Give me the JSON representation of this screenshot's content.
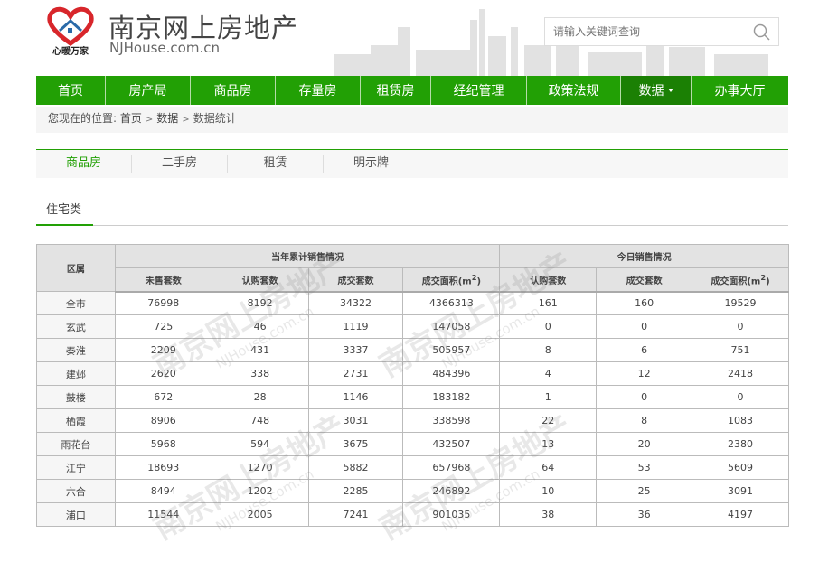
{
  "header": {
    "site_title": "南京网上房地产",
    "site_domain": "NJHouse.com.cn",
    "logo_text": "心暖万家",
    "search_placeholder": "请输入关键词查询",
    "search_icon": "search-icon"
  },
  "nav": [
    {
      "label": "首页"
    },
    {
      "label": "房产局"
    },
    {
      "label": "商品房"
    },
    {
      "label": "存量房"
    },
    {
      "label": "租赁房"
    },
    {
      "label": "经纪管理"
    },
    {
      "label": "政策法规"
    },
    {
      "label": "数据",
      "active": true
    },
    {
      "label": "办事大厅"
    }
  ],
  "breadcrumb": {
    "prefix": "您现在的位置:",
    "items": [
      "首页",
      "数据",
      "数据统计"
    ],
    "separator": ">"
  },
  "subtabs": [
    {
      "label": "商品房",
      "active": true
    },
    {
      "label": "二手房"
    },
    {
      "label": "租赁"
    },
    {
      "label": "明示牌"
    }
  ],
  "category": "住宅类",
  "table": {
    "region_header": "区属",
    "group1": "当年累计销售情况",
    "group2": "今日销售情况",
    "columns": [
      "未售套数",
      "认购套数",
      "成交套数",
      "成交面积(m",
      "认购套数",
      "成交套数",
      "成交面积(m"
    ],
    "sup": "2",
    "rows": [
      [
        "全市",
        "76998",
        "8192",
        "34322",
        "4366313",
        "161",
        "160",
        "19529"
      ],
      [
        "玄武",
        "725",
        "46",
        "1119",
        "147058",
        "0",
        "0",
        "0"
      ],
      [
        "秦淮",
        "2209",
        "431",
        "3337",
        "505957",
        "8",
        "6",
        "751"
      ],
      [
        "建邺",
        "2620",
        "338",
        "2731",
        "484396",
        "4",
        "12",
        "2418"
      ],
      [
        "鼓楼",
        "672",
        "28",
        "1146",
        "183182",
        "1",
        "0",
        "0"
      ],
      [
        "栖霞",
        "8906",
        "748",
        "3031",
        "338598",
        "22",
        "8",
        "1083"
      ],
      [
        "雨花台",
        "5968",
        "594",
        "3675",
        "432507",
        "13",
        "20",
        "2380"
      ],
      [
        "江宁",
        "18693",
        "1270",
        "5882",
        "657968",
        "64",
        "53",
        "5609"
      ],
      [
        "六合",
        "8494",
        "1202",
        "2285",
        "246892",
        "10",
        "25",
        "3091"
      ],
      [
        "浦口",
        "11544",
        "2005",
        "7241",
        "901035",
        "38",
        "36",
        "4197"
      ]
    ]
  },
  "colors": {
    "nav_green": "#22a005",
    "nav_active": "#1b8004"
  }
}
